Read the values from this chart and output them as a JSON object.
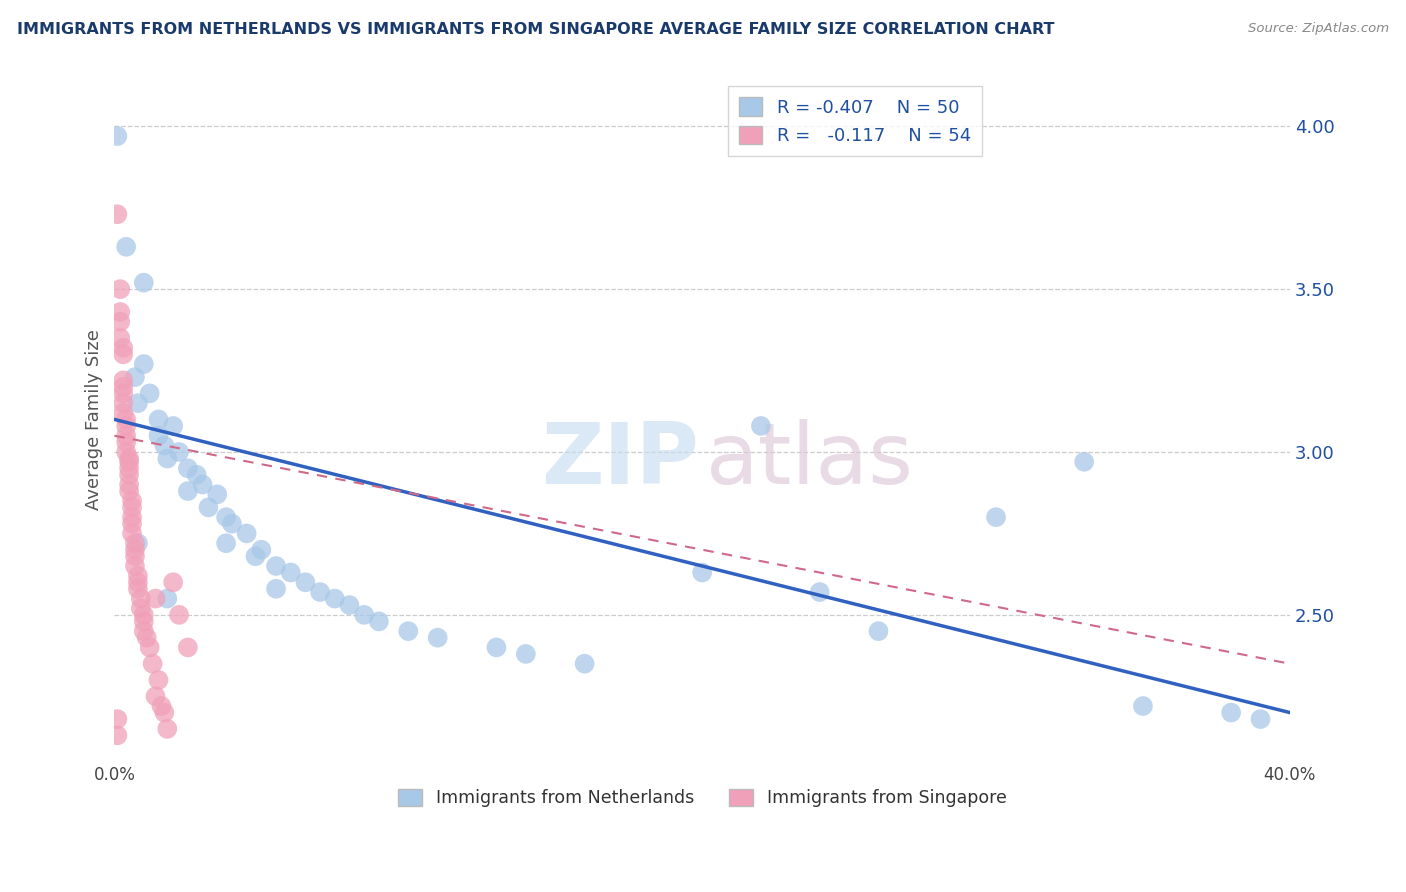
{
  "title": "IMMIGRANTS FROM NETHERLANDS VS IMMIGRANTS FROM SINGAPORE AVERAGE FAMILY SIZE CORRELATION CHART",
  "source": "Source: ZipAtlas.com",
  "ylabel": "Average Family Size",
  "xlim": [
    0.0,
    0.4
  ],
  "ylim": [
    2.05,
    4.15
  ],
  "yticks": [
    2.5,
    3.0,
    3.5,
    4.0
  ],
  "xtick_positions": [
    0.0,
    0.05,
    0.1,
    0.15,
    0.2,
    0.25,
    0.3,
    0.35,
    0.4
  ],
  "xtick_labels": [
    "0.0%",
    "",
    "",
    "",
    "",
    "",
    "",
    "",
    "40.0%"
  ],
  "color_blue": "#a8c8e8",
  "color_pink": "#f0a0b8",
  "line_blue": "#3060c0",
  "line_pink": "#d06888",
  "stat_color": "#2050a0",
  "blue_R": "-0.407",
  "blue_N": "50",
  "pink_R": "-0.117",
  "pink_N": "54",
  "blue_scatter": [
    [
      0.001,
      3.97
    ],
    [
      0.004,
      3.63
    ],
    [
      0.01,
      3.52
    ],
    [
      0.01,
      3.27
    ],
    [
      0.007,
      3.23
    ],
    [
      0.012,
      3.18
    ],
    [
      0.008,
      3.15
    ],
    [
      0.015,
      3.1
    ],
    [
      0.02,
      3.08
    ],
    [
      0.015,
      3.05
    ],
    [
      0.017,
      3.02
    ],
    [
      0.022,
      3.0
    ],
    [
      0.018,
      2.98
    ],
    [
      0.025,
      2.95
    ],
    [
      0.028,
      2.93
    ],
    [
      0.03,
      2.9
    ],
    [
      0.025,
      2.88
    ],
    [
      0.035,
      2.87
    ],
    [
      0.032,
      2.83
    ],
    [
      0.038,
      2.8
    ],
    [
      0.04,
      2.78
    ],
    [
      0.045,
      2.75
    ],
    [
      0.038,
      2.72
    ],
    [
      0.05,
      2.7
    ],
    [
      0.048,
      2.68
    ],
    [
      0.055,
      2.65
    ],
    [
      0.06,
      2.63
    ],
    [
      0.065,
      2.6
    ],
    [
      0.055,
      2.58
    ],
    [
      0.07,
      2.57
    ],
    [
      0.075,
      2.55
    ],
    [
      0.08,
      2.53
    ],
    [
      0.085,
      2.5
    ],
    [
      0.09,
      2.48
    ],
    [
      0.1,
      2.45
    ],
    [
      0.11,
      2.43
    ],
    [
      0.13,
      2.4
    ],
    [
      0.14,
      2.38
    ],
    [
      0.16,
      2.35
    ],
    [
      0.2,
      2.63
    ],
    [
      0.22,
      3.08
    ],
    [
      0.24,
      2.57
    ],
    [
      0.26,
      2.45
    ],
    [
      0.3,
      2.8
    ],
    [
      0.33,
      2.97
    ],
    [
      0.35,
      2.22
    ],
    [
      0.38,
      2.2
    ],
    [
      0.39,
      2.18
    ],
    [
      0.008,
      2.72
    ],
    [
      0.018,
      2.55
    ]
  ],
  "pink_scatter": [
    [
      0.001,
      3.73
    ],
    [
      0.002,
      3.5
    ],
    [
      0.002,
      3.43
    ],
    [
      0.002,
      3.4
    ],
    [
      0.002,
      3.35
    ],
    [
      0.003,
      3.32
    ],
    [
      0.003,
      3.3
    ],
    [
      0.003,
      3.22
    ],
    [
      0.003,
      3.2
    ],
    [
      0.003,
      3.18
    ],
    [
      0.003,
      3.15
    ],
    [
      0.003,
      3.12
    ],
    [
      0.004,
      3.1
    ],
    [
      0.004,
      3.08
    ],
    [
      0.004,
      3.05
    ],
    [
      0.004,
      3.03
    ],
    [
      0.004,
      3.0
    ],
    [
      0.005,
      2.98
    ],
    [
      0.005,
      2.97
    ],
    [
      0.005,
      2.95
    ],
    [
      0.005,
      2.93
    ],
    [
      0.005,
      2.9
    ],
    [
      0.005,
      2.88
    ],
    [
      0.006,
      2.85
    ],
    [
      0.006,
      2.83
    ],
    [
      0.006,
      2.8
    ],
    [
      0.006,
      2.78
    ],
    [
      0.006,
      2.75
    ],
    [
      0.007,
      2.72
    ],
    [
      0.007,
      2.7
    ],
    [
      0.007,
      2.68
    ],
    [
      0.007,
      2.65
    ],
    [
      0.008,
      2.62
    ],
    [
      0.008,
      2.6
    ],
    [
      0.008,
      2.58
    ],
    [
      0.009,
      2.55
    ],
    [
      0.009,
      2.52
    ],
    [
      0.01,
      2.5
    ],
    [
      0.01,
      2.48
    ],
    [
      0.01,
      2.45
    ],
    [
      0.011,
      2.43
    ],
    [
      0.012,
      2.4
    ],
    [
      0.013,
      2.35
    ],
    [
      0.014,
      2.55
    ],
    [
      0.014,
      2.25
    ],
    [
      0.015,
      2.3
    ],
    [
      0.016,
      2.22
    ],
    [
      0.017,
      2.2
    ],
    [
      0.018,
      2.15
    ],
    [
      0.02,
      2.6
    ],
    [
      0.022,
      2.5
    ],
    [
      0.025,
      2.4
    ],
    [
      0.001,
      2.18
    ],
    [
      0.001,
      2.13
    ]
  ]
}
